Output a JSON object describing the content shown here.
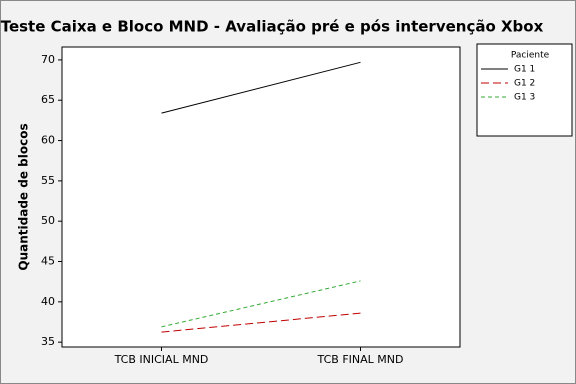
{
  "chart_data": {
    "type": "line",
    "title": "Teste Caixa e Bloco MND - Avaliação pré e pós intervenção Xbox",
    "y_label": "Quantidade de blocos",
    "categories": [
      "TCB INICIAL MND",
      "TCB FINAL MND"
    ],
    "legend_title": "Paciente",
    "legend": "right",
    "series": [
      {
        "name": "G1 1",
        "color": "#000000",
        "dash": "solid",
        "values": [
          63.4,
          69.7
        ]
      },
      {
        "name": "G1 2",
        "color": "#c00000",
        "dash": "long",
        "values": [
          36.25,
          38.6
        ]
      },
      {
        "name": "G1 3",
        "color": "#33aa33",
        "dash": "short",
        "values": [
          36.9,
          42.6
        ]
      }
    ],
    "ylim": [
      34.4,
      71.6
    ],
    "yticks": [
      35,
      40,
      45,
      50,
      55,
      60,
      65,
      70
    ]
  }
}
